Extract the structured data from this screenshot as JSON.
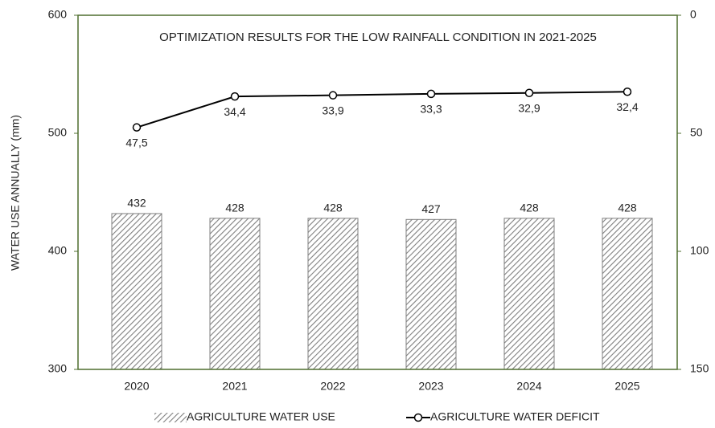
{
  "chart_data": {
    "type": "bar-line",
    "title": "OPTIMIZATION RESULTS FOR THE LOW RAINFALL CONDITION IN 2021-2025",
    "y_label": "WATER USE ANNUALLY (mm)",
    "categories": [
      "2020",
      "2021",
      "2022",
      "2023",
      "2024",
      "2025"
    ],
    "series": [
      {
        "name": "AGRICULTURE WATER USE",
        "type": "bar",
        "color": "#7f7f7f",
        "values": [
          432,
          428,
          428,
          427,
          428,
          428
        ]
      },
      {
        "name": "AGRICULTURE WATER DEFICIT",
        "type": "line",
        "axis": "y2",
        "color": "#000000",
        "values": [
          47.5,
          34.4,
          33.9,
          33.3,
          32.9,
          32.4
        ],
        "value_labels": [
          "47,5",
          "34,4",
          "33,9",
          "33,3",
          "32,9",
          "32,4"
        ]
      }
    ],
    "ylim": [
      300,
      600
    ],
    "yticks": [
      300,
      400,
      500,
      600
    ],
    "y2lim": [
      150,
      0
    ],
    "y2ticks": [
      0,
      50,
      100,
      150
    ],
    "axis_color": "#4f6f2f",
    "legend": "bottom"
  }
}
